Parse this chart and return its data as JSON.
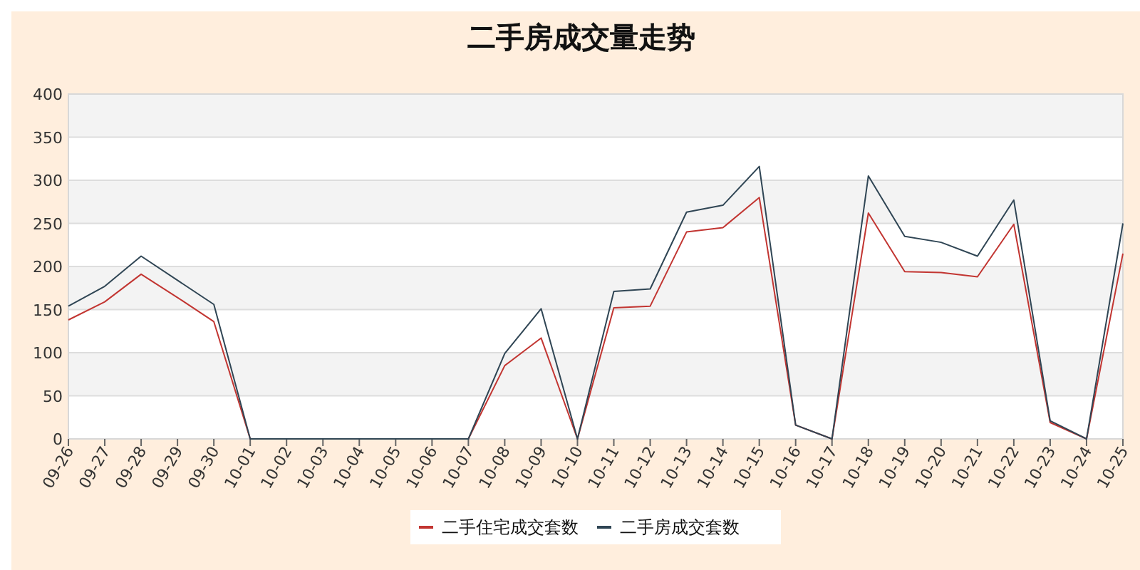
{
  "chart_data": {
    "type": "line",
    "title": "二手房成交量走势",
    "categories": [
      "09-26",
      "09-27",
      "09-28",
      "09-29",
      "09-30",
      "10-01",
      "10-02",
      "10-03",
      "10-04",
      "10-05",
      "10-06",
      "10-07",
      "10-08",
      "10-09",
      "10-10",
      "10-11",
      "10-12",
      "10-13",
      "10-14",
      "10-15",
      "10-16",
      "10-17",
      "10-18",
      "10-19",
      "10-20",
      "10-21",
      "10-22",
      "10-23",
      "10-24",
      "10-25"
    ],
    "series": [
      {
        "name": "二手住宅成交套数",
        "color": "#c23531",
        "values": [
          138,
          159,
          191,
          164,
          136,
          0,
          0,
          0,
          0,
          0,
          0,
          0,
          85,
          117,
          0,
          152,
          154,
          240,
          245,
          280,
          16,
          0,
          262,
          194,
          193,
          188,
          249,
          19,
          0,
          215
        ]
      },
      {
        "name": "二手房成交套数",
        "color": "#2f4554",
        "values": [
          154,
          177,
          212,
          184,
          156,
          0,
          0,
          0,
          0,
          0,
          0,
          0,
          99,
          151,
          0,
          171,
          174,
          263,
          271,
          316,
          16,
          0,
          305,
          235,
          228,
          212,
          277,
          21,
          0,
          250
        ]
      }
    ],
    "ylim": [
      0,
      400
    ],
    "yticks": [
      0,
      50,
      100,
      150,
      200,
      250,
      300,
      350,
      400
    ],
    "grid": true,
    "legend": "bottom",
    "marker": "none",
    "line_style": "solid"
  }
}
